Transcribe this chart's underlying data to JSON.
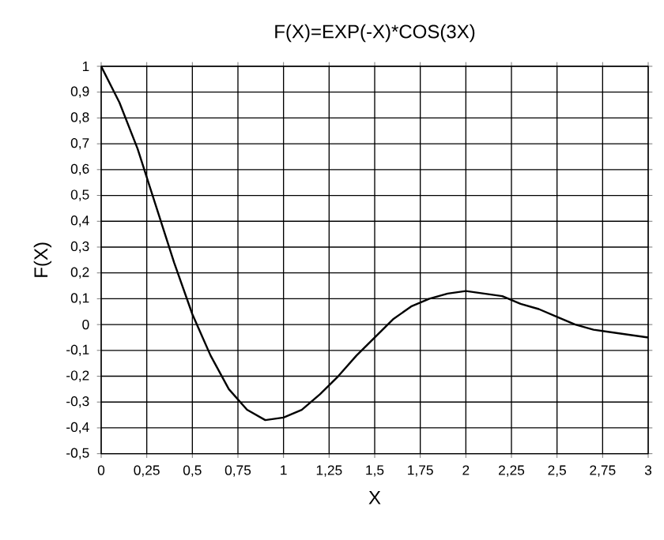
{
  "chart_data": {
    "type": "line",
    "title": "F(X)=EXP(-X)*COS(3X)",
    "xlabel": "X",
    "ylabel": "F(X)",
    "x": [
      0,
      0.1,
      0.2,
      0.3,
      0.4,
      0.5,
      0.6,
      0.7,
      0.8,
      0.9,
      1.0,
      1.1,
      1.2,
      1.3,
      1.4,
      1.5,
      1.6,
      1.7,
      1.8,
      1.9,
      2.0,
      2.1,
      2.2,
      2.3,
      2.4,
      2.5,
      2.6,
      2.7,
      2.8,
      2.9,
      3.0
    ],
    "series": [
      {
        "color": "#000000",
        "values": [
          1.0,
          0.86,
          0.68,
          0.46,
          0.24,
          0.04,
          -0.12,
          -0.25,
          -0.33,
          -0.37,
          -0.36,
          -0.33,
          -0.27,
          -0.2,
          -0.12,
          -0.05,
          0.02,
          0.07,
          0.1,
          0.12,
          0.13,
          0.12,
          0.11,
          0.08,
          0.06,
          0.03,
          0.0,
          -0.02,
          -0.03,
          -0.04,
          -0.05
        ]
      }
    ],
    "xlim": [
      0,
      3
    ],
    "ylim": [
      -0.5,
      1
    ],
    "xticks": [
      0,
      {
        "value": 0.25,
        "label": "0,25"
      },
      {
        "value": 0.5,
        "label": "0,5"
      },
      {
        "value": 0.75,
        "label": "0,75"
      },
      1,
      {
        "value": 1.25,
        "label": "1,25"
      },
      {
        "value": 1.5,
        "label": "1,5"
      },
      {
        "value": 1.75,
        "label": "1,75"
      },
      2,
      {
        "value": 2.25,
        "label": "2,25"
      },
      {
        "value": 2.5,
        "label": "2,5"
      },
      {
        "value": 2.75,
        "label": "2,75"
      },
      3
    ],
    "yticks": [
      {
        "value": -0.5,
        "label": "-0,5"
      },
      {
        "value": -0.4,
        "label": "-0,4"
      },
      {
        "value": -0.3,
        "label": "-0,3"
      },
      {
        "value": -0.2,
        "label": "-0,2"
      },
      {
        "value": -0.1,
        "label": "-0,1"
      },
      0,
      {
        "value": 0.1,
        "label": "0,1"
      },
      {
        "value": 0.2,
        "label": "0,2"
      },
      {
        "value": 0.3,
        "label": "0,3"
      },
      {
        "value": 0.4,
        "label": "0,4"
      },
      {
        "value": 0.5,
        "label": "0,5"
      },
      {
        "value": 0.6,
        "label": "0,6"
      },
      {
        "value": 0.7,
        "label": "0,7"
      },
      {
        "value": 0.8,
        "label": "0,8"
      },
      {
        "value": 0.9,
        "label": "0,9"
      },
      1
    ],
    "grid": true,
    "marker": "none",
    "line_style": "solid"
  }
}
